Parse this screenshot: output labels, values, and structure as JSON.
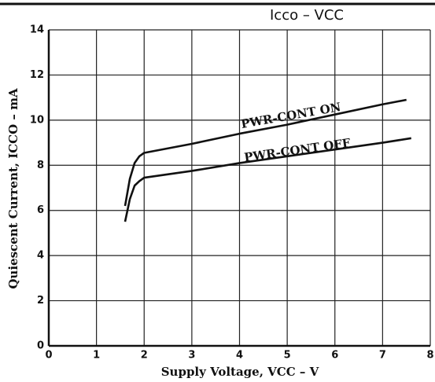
{
  "chart_data": {
    "type": "line",
    "title": "Icco – VCC",
    "x_label": "Supply Voltage, VCC – V",
    "y_label": "Quiescent Current, ICCO – mA",
    "xlim": [
      0,
      8
    ],
    "xticks": [
      0,
      1,
      2,
      3,
      4,
      5,
      6,
      7,
      8
    ],
    "ylim": [
      0,
      14
    ],
    "yticks": [
      0,
      2,
      4,
      6,
      8,
      10,
      12,
      14
    ],
    "grid": true,
    "series": [
      {
        "name": "PWR-CONT ON",
        "color": "#111111",
        "x": [
          1.6,
          1.7,
          1.8,
          1.9,
          2.0,
          2.5,
          3,
          4,
          5,
          6,
          7,
          7.5
        ],
        "values": [
          6.2,
          7.4,
          8.1,
          8.4,
          8.55,
          8.75,
          8.95,
          9.4,
          9.8,
          10.25,
          10.7,
          10.9
        ]
      },
      {
        "name": "PWR-CONT OFF",
        "color": "#111111",
        "x": [
          1.6,
          1.7,
          1.8,
          1.9,
          2.0,
          3,
          4,
          5,
          6,
          7,
          7.6
        ],
        "values": [
          5.5,
          6.5,
          7.1,
          7.3,
          7.45,
          7.75,
          8.1,
          8.4,
          8.7,
          9.0,
          9.2
        ]
      }
    ]
  }
}
